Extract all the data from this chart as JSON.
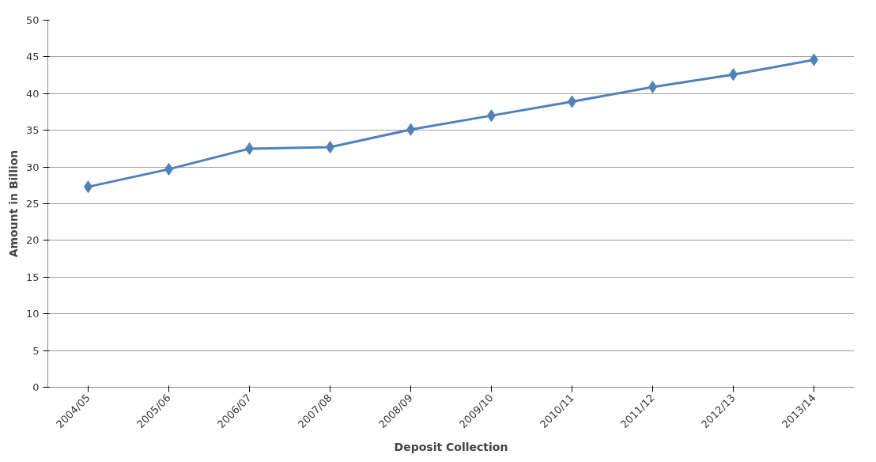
{
  "chart_data": {
    "type": "line",
    "xlabel": "Deposit Collection",
    "ylabel": "Amount in Billion",
    "categories": [
      "2004/05",
      "2005/06",
      "2006/07",
      "2007/08",
      "2008/09",
      "2009/10",
      "2010/11",
      "2011/12",
      "2012/13",
      "2013/14"
    ],
    "series": [
      {
        "color": "#4f81bd",
        "values": [
          27.3,
          29.7,
          32.5,
          32.7,
          35.1,
          37.0,
          38.9,
          40.9,
          42.6,
          44.6
        ]
      }
    ],
    "ylim": [
      0,
      50
    ],
    "yticks": [
      0,
      5,
      10,
      15,
      20,
      25,
      30,
      35,
      40,
      45,
      50
    ],
    "grid": "y",
    "marker": "diamond",
    "line_style": "solid"
  }
}
